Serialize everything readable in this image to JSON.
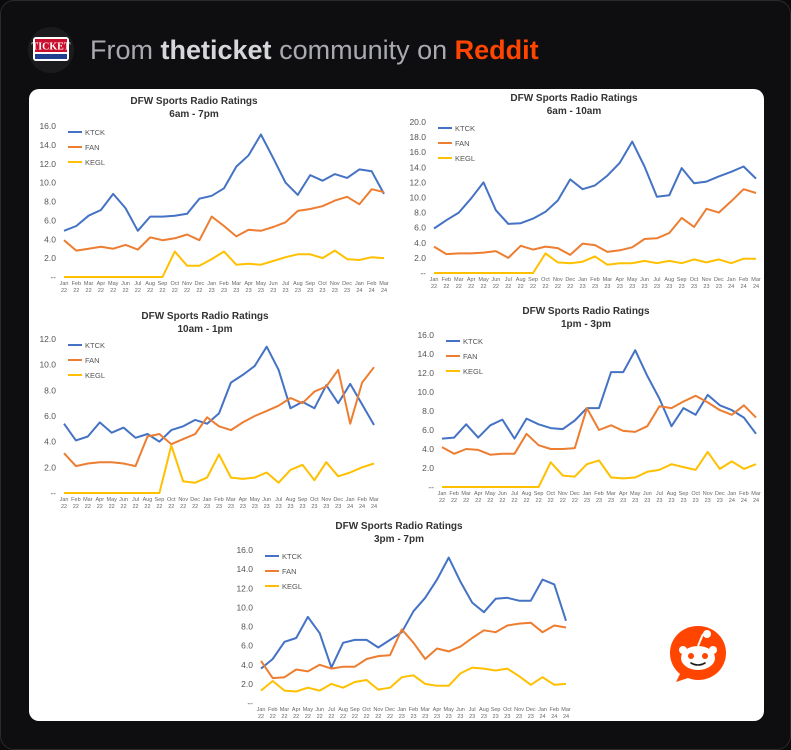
{
  "header": {
    "prefix": "From",
    "community": "theticket",
    "middle": "community on",
    "brand": "Reddit",
    "avatar_text": "TICKET"
  },
  "colors": {
    "KTCK": "#4472c4",
    "FAN": "#ed7d31",
    "KEGL": "#ffc000",
    "brand": "#ff4500"
  },
  "chart_data": [
    {
      "type": "line",
      "title": "DFW Sports Radio Ratings",
      "subtitle": "6am - 7pm",
      "x": [
        "Jan 22",
        "Feb 22",
        "Mar 22",
        "Apr 22",
        "May 22",
        "Jun 22",
        "Jul 22",
        "Aug 22",
        "Sep 22",
        "Oct 22",
        "Nov 22",
        "Dec 22",
        "Jan 23",
        "Feb 23",
        "Mar 23",
        "Apr 23",
        "May 23",
        "Jun 23",
        "Jul 23",
        "Aug 23",
        "Sep 23",
        "Oct 23",
        "Nov 23",
        "Dec 23",
        "Jan 24",
        "Feb 24",
        "Mar 24"
      ],
      "yticks": [
        0,
        2,
        4,
        6,
        8,
        10,
        12,
        14,
        16
      ],
      "ytick_labels": [
        "--",
        "2.0",
        "4.0",
        "6.0",
        "8.0",
        "10.0",
        "12.0",
        "14.0",
        "16.0"
      ],
      "ylim": [
        0,
        16
      ],
      "legend": [
        "KTCK",
        "FAN",
        "KEGL"
      ],
      "series": [
        {
          "name": "KTCK",
          "values": [
            4.9,
            5.4,
            6.5,
            7.1,
            8.8,
            7.3,
            4.9,
            6.4,
            6.4,
            6.5,
            6.7,
            8.3,
            8.6,
            9.4,
            11.7,
            12.9,
            15.1,
            12.6,
            10.0,
            8.7,
            10.8,
            10.2,
            10.9,
            10.5,
            11.4,
            11.2,
            8.8
          ]
        },
        {
          "name": "FAN",
          "values": [
            3.9,
            2.8,
            3.0,
            3.2,
            3.0,
            3.4,
            2.9,
            4.2,
            3.9,
            4.1,
            4.5,
            3.9,
            6.4,
            5.4,
            4.3,
            5.0,
            4.9,
            5.3,
            5.8,
            7.0,
            7.2,
            7.5,
            8.1,
            8.5,
            7.7,
            9.3,
            9.0
          ]
        },
        {
          "name": "KEGL",
          "values": [
            0,
            0,
            0,
            0,
            0,
            0,
            0,
            0,
            0,
            2.7,
            1.2,
            1.2,
            1.9,
            2.7,
            1.3,
            1.4,
            1.3,
            1.7,
            2.1,
            2.4,
            2.4,
            2.0,
            2.8,
            1.9,
            1.8,
            2.1,
            2.0
          ]
        }
      ]
    },
    {
      "type": "line",
      "title": "DFW Sports Radio Ratings",
      "subtitle": "6am - 10am",
      "x": [
        "Jan 22",
        "Feb 22",
        "Mar 22",
        "Apr 22",
        "May 22",
        "Jun 22",
        "Jul 22",
        "Aug 22",
        "Sep 22",
        "Oct 22",
        "Nov 22",
        "Dec 22",
        "Jan 23",
        "Feb 23",
        "Mar 23",
        "Apr 23",
        "May 23",
        "Jun 23",
        "Jul 23",
        "Aug 23",
        "Sep 23",
        "Oct 23",
        "Nov 23",
        "Dec 23",
        "Jan 24",
        "Feb 24",
        "Mar 24"
      ],
      "yticks": [
        0,
        2,
        4,
        6,
        8,
        10,
        12,
        14,
        16,
        18,
        20
      ],
      "ytick_labels": [
        "--",
        "2.0",
        "4.0",
        "6.0",
        "8.0",
        "10.0",
        "12.0",
        "14.0",
        "16.0",
        "18.0",
        "20.0"
      ],
      "ylim": [
        0,
        20
      ],
      "legend": [
        "KTCK",
        "FAN",
        "KEGL"
      ],
      "series": [
        {
          "name": "KTCK",
          "values": [
            5.9,
            7.0,
            8.0,
            9.9,
            12.0,
            8.3,
            6.5,
            6.6,
            7.2,
            8.1,
            9.6,
            12.4,
            11.1,
            11.6,
            12.9,
            14.6,
            17.4,
            14.1,
            10.1,
            10.3,
            13.9,
            11.9,
            12.1,
            12.8,
            13.4,
            14.1,
            12.5
          ]
        },
        {
          "name": "FAN",
          "values": [
            3.5,
            2.5,
            2.6,
            2.6,
            2.7,
            2.9,
            2.0,
            3.6,
            3.1,
            3.5,
            3.3,
            2.4,
            3.9,
            3.7,
            2.8,
            3.0,
            3.4,
            4.5,
            4.6,
            5.3,
            7.3,
            6.1,
            8.5,
            8.0,
            9.5,
            11.1,
            10.6
          ]
        },
        {
          "name": "KEGL",
          "values": [
            0,
            0,
            0,
            0,
            0,
            0,
            0,
            0,
            0,
            2.6,
            1.4,
            1.3,
            1.5,
            2.2,
            1.1,
            1.3,
            1.3,
            1.6,
            1.3,
            1.6,
            1.3,
            1.8,
            1.4,
            1.8,
            1.3,
            1.9,
            1.9
          ]
        }
      ]
    },
    {
      "type": "line",
      "title": "DFW Sports Radio Ratings",
      "subtitle": "10am - 1pm",
      "x": [
        "Jan 22",
        "Feb 22",
        "Mar 22",
        "Apr 22",
        "May 22",
        "Jun 22",
        "Jul 22",
        "Aug 22",
        "Sep 22",
        "Oct 22",
        "Nov 22",
        "Dec 22",
        "Jan 23",
        "Feb 23",
        "Mar 23",
        "Apr 23",
        "May 23",
        "Jun 23",
        "Jul 23",
        "Aug 23",
        "Sep 23",
        "Oct 23",
        "Nov 23",
        "Dec 23",
        "Jan 24",
        "Feb 24",
        "Mar 24"
      ],
      "yticks": [
        0,
        2,
        4,
        6,
        8,
        10,
        12
      ],
      "ytick_labels": [
        "--",
        "2.0",
        "4.0",
        "6.0",
        "8.0",
        "10.0",
        "12.0"
      ],
      "ylim": [
        0,
        12
      ],
      "legend": [
        "KTCK",
        "FAN",
        "KEGL"
      ],
      "series": [
        {
          "name": "KTCK",
          "values": [
            5.4,
            4.1,
            4.4,
            5.5,
            4.7,
            5.1,
            4.3,
            4.6,
            4.0,
            4.9,
            5.2,
            5.7,
            5.4,
            6.2,
            8.6,
            9.2,
            9.9,
            11.4,
            9.6,
            6.6,
            7.1,
            6.6,
            8.4,
            7.0,
            8.5,
            6.9,
            5.3
          ]
        },
        {
          "name": "FAN",
          "values": [
            3.1,
            2.1,
            2.3,
            2.4,
            2.4,
            2.3,
            2.1,
            4.4,
            4.6,
            3.8,
            4.2,
            4.6,
            5.9,
            5.2,
            4.9,
            5.5,
            6.0,
            6.4,
            6.8,
            7.4,
            7.0,
            7.9,
            8.3,
            9.6,
            5.4,
            8.6,
            9.8
          ]
        },
        {
          "name": "KEGL",
          "values": [
            0,
            0,
            0,
            0,
            0,
            0,
            0,
            0,
            0,
            3.7,
            0.9,
            0.8,
            1.2,
            3.0,
            1.2,
            1.1,
            1.2,
            1.6,
            0.8,
            1.8,
            2.2,
            1.0,
            2.4,
            1.3,
            1.6,
            2.0,
            2.3
          ]
        }
      ]
    },
    {
      "type": "line",
      "title": "DFW Sports Radio Ratings",
      "subtitle": "1pm - 3pm",
      "x": [
        "Jan 22",
        "Feb 22",
        "Mar 22",
        "Apr 22",
        "May 22",
        "Jun 22",
        "Jul 22",
        "Aug 22",
        "Sep 22",
        "Oct 22",
        "Nov 22",
        "Dec 22",
        "Jan 23",
        "Feb 23",
        "Mar 23",
        "Apr 23",
        "May 23",
        "Jun 23",
        "Jul 23",
        "Aug 23",
        "Sep 23",
        "Oct 23",
        "Nov 23",
        "Dec 23",
        "Jan 24",
        "Feb 24",
        "Mar 24"
      ],
      "yticks": [
        0,
        2,
        4,
        6,
        8,
        10,
        12,
        14,
        16
      ],
      "ytick_labels": [
        "--",
        "2.0",
        "4.0",
        "6.0",
        "8.0",
        "10.0",
        "12.0",
        "14.0",
        "16.0"
      ],
      "ylim": [
        0,
        16
      ],
      "legend": [
        "KTCK",
        "FAN",
        "KEGL"
      ],
      "series": [
        {
          "name": "KTCK",
          "values": [
            5.1,
            5.2,
            6.6,
            5.2,
            6.5,
            7.1,
            5.1,
            7.2,
            6.6,
            6.2,
            6.1,
            7.0,
            8.3,
            8.3,
            12.1,
            12.1,
            14.4,
            11.7,
            9.3,
            6.4,
            8.3,
            7.6,
            9.7,
            8.6,
            8.1,
            7.3,
            5.6
          ]
        },
        {
          "name": "FAN",
          "values": [
            4.2,
            3.5,
            4.0,
            3.9,
            3.4,
            3.5,
            3.5,
            5.6,
            4.4,
            4.0,
            4.0,
            4.1,
            8.3,
            6.0,
            6.5,
            5.9,
            5.8,
            6.4,
            8.5,
            8.3,
            9.0,
            9.6,
            8.9,
            8.1,
            7.6,
            8.6,
            7.3
          ]
        },
        {
          "name": "KEGL",
          "values": [
            0,
            0,
            0,
            0,
            0,
            0,
            0,
            0,
            0,
            2.6,
            1.2,
            1.1,
            2.4,
            2.8,
            1.0,
            0.9,
            1.0,
            1.6,
            1.8,
            2.4,
            2.1,
            1.8,
            3.7,
            1.9,
            2.7,
            1.9,
            2.4
          ]
        }
      ]
    },
    {
      "type": "line",
      "title": "DFW Sports Radio Ratings",
      "subtitle": "3pm - 7pm",
      "x": [
        "Jan 22",
        "Feb 22",
        "Mar 22",
        "Apr 22",
        "May 22",
        "Jun 22",
        "Jul 22",
        "Aug 22",
        "Sep 22",
        "Oct 22",
        "Nov 22",
        "Dec 22",
        "Jan 23",
        "Feb 23",
        "Mar 23",
        "Apr 23",
        "May 23",
        "Jun 23",
        "Jul 23",
        "Aug 23",
        "Sep 23",
        "Oct 23",
        "Nov 23",
        "Dec 23",
        "Jan 24",
        "Feb 24",
        "Mar 24"
      ],
      "yticks": [
        0,
        2,
        4,
        6,
        8,
        10,
        12,
        14,
        16
      ],
      "ytick_labels": [
        "--",
        "2.0",
        "4.0",
        "6.0",
        "8.0",
        "10.0",
        "12.0",
        "14.0",
        "16.0"
      ],
      "ylim": [
        0,
        16
      ],
      "legend": [
        "KTCK",
        "FAN",
        "KEGL"
      ],
      "series": [
        {
          "name": "KTCK",
          "values": [
            3.6,
            4.6,
            6.4,
            6.8,
            9.0,
            7.3,
            3.7,
            6.3,
            6.6,
            6.6,
            5.8,
            6.6,
            7.4,
            9.6,
            11.0,
            12.9,
            15.2,
            12.7,
            10.5,
            9.5,
            10.9,
            11.0,
            10.7,
            10.7,
            12.9,
            12.4,
            8.6
          ]
        },
        {
          "name": "FAN",
          "values": [
            4.4,
            2.6,
            2.7,
            3.5,
            3.3,
            4.0,
            3.6,
            3.8,
            3.8,
            4.6,
            4.9,
            5.0,
            7.7,
            6.3,
            4.6,
            5.7,
            5.4,
            5.9,
            6.8,
            7.6,
            7.4,
            8.1,
            8.3,
            8.4,
            7.4,
            8.1,
            7.9
          ]
        },
        {
          "name": "KEGL",
          "values": [
            1.3,
            2.3,
            1.3,
            1.2,
            1.6,
            1.3,
            2.0,
            1.6,
            2.2,
            2.4,
            1.4,
            1.6,
            2.7,
            2.9,
            2.0,
            1.8,
            1.8,
            3.1,
            3.7,
            3.6,
            3.4,
            3.6,
            2.8,
            1.9,
            2.7,
            1.9,
            2.0
          ]
        }
      ]
    }
  ]
}
